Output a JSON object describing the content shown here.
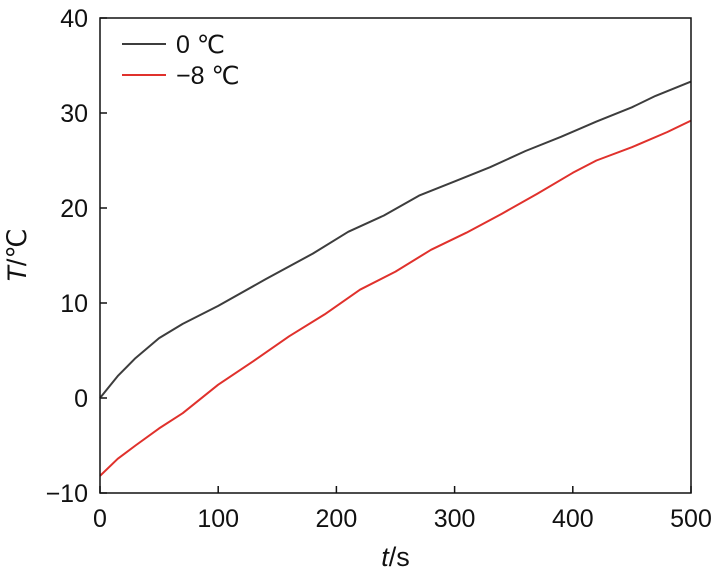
{
  "chart_data": {
    "type": "line",
    "xlabel_italic": "t",
    "xlabel_unit": "/s",
    "ylabel_italic": "T",
    "ylabel_unit": "/℃",
    "xlim": [
      0,
      500
    ],
    "ylim": [
      -10,
      40
    ],
    "xticks": [
      "0",
      "100",
      "200",
      "300",
      "400",
      "500"
    ],
    "yticks": [
      "−10",
      "0",
      "10",
      "20",
      "30",
      "40"
    ],
    "grid": false,
    "legend_position": "top-left",
    "series": [
      {
        "name": "0 ℃",
        "color": "#3d3d3d",
        "x": [
          0,
          15,
          30,
          50,
          70,
          100,
          140,
          180,
          210,
          240,
          270,
          300,
          330,
          360,
          390,
          420,
          450,
          470,
          500
        ],
        "y": [
          0,
          2.3,
          4.2,
          6.3,
          7.8,
          9.7,
          12.5,
          15.2,
          17.5,
          19.2,
          21.3,
          22.8,
          24.3,
          26.0,
          27.5,
          29.1,
          30.6,
          31.8,
          33.3
        ]
      },
      {
        "name": "−8 ℃",
        "color": "#e0312c",
        "x": [
          0,
          15,
          30,
          50,
          70,
          100,
          130,
          160,
          190,
          220,
          250,
          280,
          310,
          340,
          370,
          400,
          420,
          450,
          480,
          500
        ],
        "y": [
          -8.2,
          -6.4,
          -5.0,
          -3.2,
          -1.6,
          1.4,
          3.9,
          6.5,
          8.8,
          11.4,
          13.3,
          15.6,
          17.4,
          19.4,
          21.5,
          23.7,
          25.0,
          26.4,
          28.0,
          29.2
        ]
      }
    ]
  }
}
